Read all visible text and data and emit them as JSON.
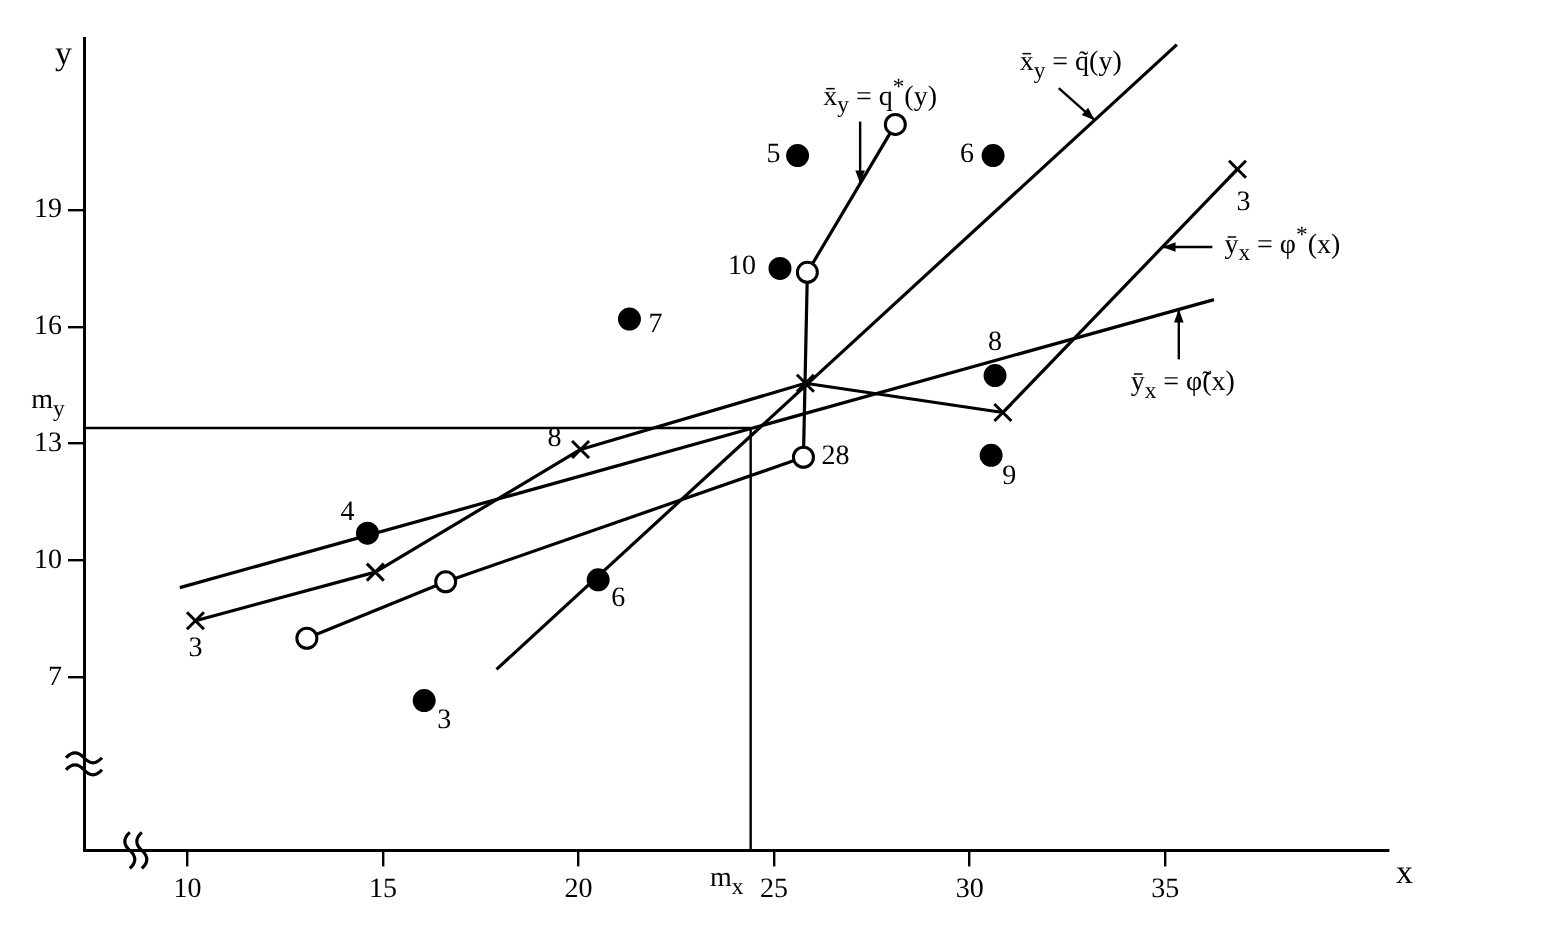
{
  "chart_data": {
    "type": "scatter",
    "xlabel": "x",
    "ylabel": "y",
    "xlim": [
      7.35,
      40.7
    ],
    "ylim": [
      2.55,
      23.4
    ],
    "xticks": [
      10,
      15,
      20,
      25,
      30,
      35
    ],
    "yticks": [
      7,
      10,
      13,
      16,
      19
    ],
    "marker": "circle",
    "series": [
      {
        "color": "#000000",
        "x": [
          14.6,
          16.05,
          20.5,
          21.3,
          25.15,
          25.6,
          30.6,
          30.65,
          30.55
        ],
        "values": [
          10.7,
          6.4,
          9.5,
          16.2,
          17.5,
          20.4,
          20.4,
          14.75,
          12.7
        ]
      },
      {
        "type": "line",
        "color": "#000000",
        "marker": "cross",
        "x": [
          10.2,
          14.8,
          20.05,
          25.8,
          30.85,
          36.85
        ],
        "values": [
          8.45,
          9.7,
          12.85,
          14.55,
          13.8,
          20.05
        ]
      },
      {
        "type": "line",
        "color": "#000000",
        "x": [
          13.05,
          16.6,
          25.75,
          25.85,
          28.1
        ],
        "values": [
          8.0,
          9.45,
          12.65,
          17.4,
          21.2
        ]
      },
      {
        "type": "line",
        "color": "#000000",
        "marker": "none",
        "x": [
          9.8,
          36.25
        ],
        "values": [
          9.3,
          16.7
        ]
      },
      {
        "type": "line",
        "color": "#000000",
        "marker": "none",
        "x": [
          17.9,
          35.3
        ],
        "values": [
          7.2,
          23.25
        ]
      }
    ],
    "ref_lines": [
      {
        "axis": "x",
        "value": 24.4,
        "label": "m$_{x}$"
      },
      {
        "axis": "y",
        "value": 13.4,
        "label": "m$_{y}$"
      }
    ],
    "annotations": [
      {
        "text": "x̄$_{y}$ = q$^{*}$(y)",
        "x": 27.2,
        "y": 19.68
      },
      {
        "text": "x̄$_{y}$ = q̃(y)",
        "x": 33.2,
        "y": 21.31
      },
      {
        "text": "ȳ$_{x}$ = φ$^{*}$(x)",
        "x": 34.93,
        "y": 18.05
      },
      {
        "text": "ȳ$_{x}$ = φ̃(x)",
        "x": 35.35,
        "y": 16.45
      },
      {
        "text": "4",
        "x": 14.6,
        "y": 10.7
      },
      {
        "text": "3",
        "x": 16.05,
        "y": 6.4
      },
      {
        "text": "6",
        "x": 20.5,
        "y": 9.5
      },
      {
        "text": "7",
        "x": 21.3,
        "y": 16.2
      },
      {
        "text": "10",
        "x": 25.15,
        "y": 17.5
      },
      {
        "text": "5",
        "x": 25.6,
        "y": 20.4
      },
      {
        "text": "6",
        "x": 30.6,
        "y": 20.4
      },
      {
        "text": "8",
        "x": 30.65,
        "y": 14.75
      },
      {
        "text": "9",
        "x": 30.55,
        "y": 12.7
      },
      {
        "text": "3",
        "x": 10.2,
        "y": 8.45
      },
      {
        "text": "8",
        "x": 20.05,
        "y": 12.85
      },
      {
        "text": "3",
        "x": 36.85,
        "y": 20.05
      },
      {
        "text": "28",
        "x": 25.75,
        "y": 12.65
      }
    ]
  }
}
